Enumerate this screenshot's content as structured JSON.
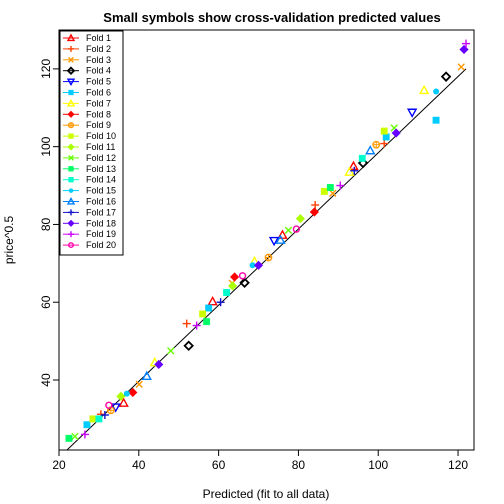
{
  "chart_data": {
    "type": "scatter",
    "title": "Small symbols show cross-validation predicted values",
    "xlabel": "Predicted (fit to all data)",
    "ylabel": "price^0.5",
    "xlim": [
      20,
      124
    ],
    "ylim": [
      22,
      130
    ],
    "x_ticks": [
      20,
      40,
      60,
      80,
      100,
      120
    ],
    "y_ticks": [
      40,
      60,
      80,
      100,
      120
    ],
    "fit_line": {
      "x": [
        22,
        122
      ],
      "y": [
        22,
        120
      ]
    },
    "legend_position": "top-left",
    "series": [
      {
        "name": "Fold 1",
        "color": "#ff0000",
        "symbol": "triangle-up",
        "points": [
          [
            36.2,
            34.1
          ],
          [
            58.5,
            60.2
          ],
          [
            76.0,
            77.3
          ],
          [
            93.8,
            95.0
          ]
        ]
      },
      {
        "name": "Fold 2",
        "color": "#ff4000",
        "symbol": "plus",
        "points": [
          [
            30.5,
            31.2
          ],
          [
            52.0,
            54.5
          ],
          [
            84.2,
            85.0
          ],
          [
            101.5,
            100.8
          ]
        ]
      },
      {
        "name": "Fold 3",
        "color": "#ff9900",
        "symbol": "cross",
        "points": [
          [
            40.1,
            38.9
          ],
          [
            63.4,
            64.9
          ],
          [
            88.6,
            88.0
          ],
          [
            120.8,
            120.5
          ]
        ]
      },
      {
        "name": "Fold 4",
        "color": "#000000",
        "symbol": "diamond-open",
        "points": [
          [
            52.5,
            48.8
          ],
          [
            66.5,
            65.0
          ],
          [
            96.2,
            95.8
          ],
          [
            117.0,
            118.0
          ]
        ]
      },
      {
        "name": "Fold 5",
        "color": "#0000ff",
        "symbol": "triangle-down",
        "points": [
          [
            73.9,
            75.8
          ],
          [
            34.2,
            33.0
          ],
          [
            108.5,
            108.8
          ]
        ]
      },
      {
        "name": "Fold 6",
        "color": "#00ccff",
        "symbol": "square",
        "points": [
          [
            27.0,
            28.5
          ],
          [
            57.5,
            58.5
          ],
          [
            102.0,
            102.5
          ],
          [
            114.5,
            106.8
          ]
        ]
      },
      {
        "name": "Fold 7",
        "color": "#ffff00",
        "symbol": "triangle-up",
        "points": [
          [
            44.0,
            44.5
          ],
          [
            69.0,
            70.5
          ],
          [
            92.8,
            93.5
          ],
          [
            111.5,
            114.5
          ]
        ]
      },
      {
        "name": "Fold 8",
        "color": "#ff0000",
        "symbol": "diamond-filled",
        "points": [
          [
            38.5,
            36.8
          ],
          [
            64.0,
            66.5
          ],
          [
            84.0,
            83.2
          ]
        ]
      },
      {
        "name": "Fold 9",
        "color": "#ff9900",
        "symbol": "circle-plus",
        "points": [
          [
            33.0,
            32.2
          ],
          [
            72.5,
            71.5
          ],
          [
            99.5,
            100.5
          ]
        ]
      },
      {
        "name": "Fold 10",
        "color": "#ccff00",
        "symbol": "square",
        "points": [
          [
            28.5,
            30.0
          ],
          [
            56.0,
            57.0
          ],
          [
            86.5,
            88.5
          ],
          [
            101.5,
            104.0
          ]
        ]
      },
      {
        "name": "Fold 11",
        "color": "#aaff00",
        "symbol": "diamond-filled",
        "points": [
          [
            35.5,
            35.8
          ],
          [
            63.5,
            64.2
          ],
          [
            80.5,
            81.5
          ]
        ]
      },
      {
        "name": "Fold 12",
        "color": "#66ff00",
        "symbol": "cross",
        "points": [
          [
            24.0,
            25.5
          ],
          [
            48.0,
            47.5
          ],
          [
            77.5,
            78.5
          ],
          [
            104.0,
            104.8
          ]
        ]
      },
      {
        "name": "Fold 13",
        "color": "#00ff66",
        "symbol": "square",
        "points": [
          [
            22.5,
            25.0
          ],
          [
            57.0,
            55.0
          ],
          [
            88.0,
            89.5
          ]
        ]
      },
      {
        "name": "Fold 14",
        "color": "#00ffcc",
        "symbol": "square",
        "points": [
          [
            30.0,
            30.0
          ],
          [
            62.0,
            62.5
          ],
          [
            96.0,
            97.0
          ]
        ]
      },
      {
        "name": "Fold 15",
        "color": "#00ccff",
        "symbol": "circle-filled",
        "points": [
          [
            37.0,
            36.5
          ],
          [
            68.5,
            69.5
          ],
          [
            114.5,
            114.2
          ]
        ]
      },
      {
        "name": "Fold 16",
        "color": "#0080ff",
        "symbol": "triangle-up",
        "points": [
          [
            42.0,
            41.0
          ],
          [
            75.5,
            76.0
          ],
          [
            98.0,
            99.0
          ]
        ]
      },
      {
        "name": "Fold 17",
        "color": "#1010cc",
        "symbol": "plus",
        "points": [
          [
            31.5,
            31.0
          ],
          [
            60.5,
            60.0
          ],
          [
            94.0,
            93.8
          ]
        ]
      },
      {
        "name": "Fold 18",
        "color": "#6600ff",
        "symbol": "diamond-filled",
        "points": [
          [
            45.0,
            44.0
          ],
          [
            70.0,
            69.5
          ],
          [
            104.5,
            103.5
          ],
          [
            121.5,
            125.0
          ]
        ]
      },
      {
        "name": "Fold 19",
        "color": "#cc00ff",
        "symbol": "plus",
        "points": [
          [
            26.5,
            26.0
          ],
          [
            54.5,
            54.0
          ],
          [
            90.5,
            90.0
          ],
          [
            122.0,
            126.5
          ]
        ]
      },
      {
        "name": "Fold 20",
        "color": "#ff00aa",
        "symbol": "circle-open",
        "points": [
          [
            32.5,
            33.5
          ],
          [
            66.0,
            66.8
          ],
          [
            79.5,
            78.8
          ]
        ]
      }
    ]
  }
}
